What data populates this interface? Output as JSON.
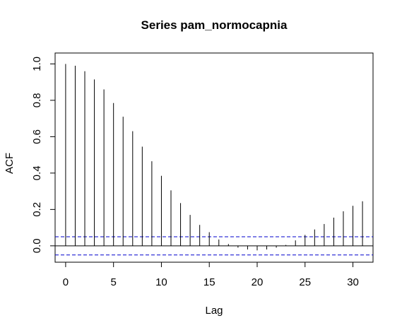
{
  "chart_data": {
    "type": "bar",
    "title": "Series  pam_normocapnia",
    "xlabel": "Lag",
    "ylabel": "ACF",
    "xlim": [
      -1.1,
      32.1
    ],
    "ylim": [
      -0.09,
      1.06
    ],
    "x_ticks": [
      0,
      5,
      10,
      15,
      20,
      25,
      30
    ],
    "x_tick_labels": [
      "0",
      "5",
      "10",
      "15",
      "20",
      "25",
      "30"
    ],
    "y_ticks": [
      0.0,
      0.2,
      0.4,
      0.6,
      0.8,
      1.0
    ],
    "y_tick_labels": [
      "0.0",
      "0.2",
      "0.4",
      "0.6",
      "0.8",
      "1.0"
    ],
    "lags": [
      0,
      1,
      2,
      3,
      4,
      5,
      6,
      7,
      8,
      9,
      10,
      11,
      12,
      13,
      14,
      15,
      16,
      17,
      18,
      19,
      20,
      21,
      22,
      23,
      24,
      25,
      26,
      27,
      28,
      29,
      30,
      31
    ],
    "values": [
      1.0,
      0.99,
      0.96,
      0.915,
      0.86,
      0.785,
      0.71,
      0.63,
      0.545,
      0.465,
      0.385,
      0.305,
      0.235,
      0.17,
      0.115,
      0.075,
      0.035,
      0.01,
      -0.01,
      -0.02,
      -0.025,
      -0.02,
      -0.01,
      0.005,
      0.03,
      0.06,
      0.09,
      0.12,
      0.155,
      0.19,
      0.22,
      0.245
    ],
    "confidence_band": [
      -0.05,
      0.05
    ],
    "confidence_color": "#0000cd",
    "bar_color": "#000000",
    "zero_line": true,
    "grid": false,
    "legend": "none"
  }
}
